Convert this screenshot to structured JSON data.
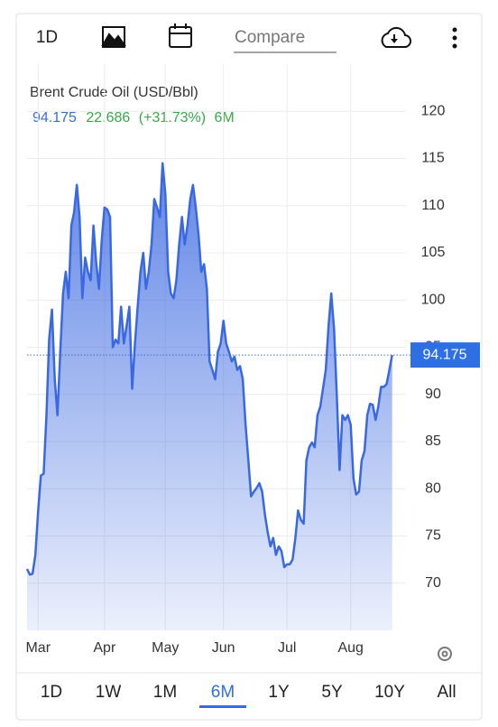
{
  "toolbar": {
    "interval": "1D",
    "compare_placeholder": "Compare"
  },
  "chart_data": {
    "type": "line",
    "title": "Brent Crude Oil (USD/Bbl)",
    "change": 22.686,
    "change_percent": "(+31.73%)",
    "period": "6M",
    "color": "#3a68e0",
    "values": [
      71.5,
      70.9,
      71,
      73,
      77.7,
      81.4,
      81.6,
      87.8,
      95.9,
      99,
      91.6,
      87.8,
      94.5,
      100.7,
      103,
      100.2,
      107.9,
      109.3,
      112.2,
      108.8,
      100.2,
      104.5,
      103,
      102.1,
      107.9,
      104,
      101.2,
      106.4,
      109.8,
      109.6,
      108.8,
      95,
      95.8,
      95.4,
      99.3,
      95.4,
      97.3,
      99.3,
      90.6,
      95.4,
      99.3,
      103,
      105,
      101.2,
      103,
      105.9,
      110.7,
      109.8,
      108.8,
      114.5,
      111.2,
      103,
      100.7,
      100.2,
      102.1,
      105.9,
      108.8,
      105.9,
      107.9,
      110.7,
      112.2,
      109.8,
      106.9,
      103,
      103.8,
      101.2,
      93.5,
      92.6,
      91.6,
      94.5,
      95.4,
      97.8,
      95.4,
      94.5,
      93.5,
      94,
      92.6,
      93,
      91.6,
      86.8,
      83,
      79.2,
      79.7,
      80.1,
      80.6,
      79.7,
      77.3,
      75.4,
      73.9,
      74.8,
      73,
      73.9,
      73.4,
      71.7,
      72,
      72,
      72.5,
      74.8,
      77.7,
      76.7,
      76.3,
      83,
      84.4,
      84.9,
      84.4,
      87.8,
      88.7,
      90.6,
      92.6,
      97.3,
      100.7,
      96.9,
      89.7,
      82,
      87.8,
      87.3,
      87.8,
      86.8,
      81.1,
      79.4,
      79.7,
      83,
      84,
      87.8,
      89,
      88.9,
      87.3,
      88.7,
      90.8,
      90.8,
      91.1,
      92.6,
      94.175
    ],
    "xlim": [
      0,
      137
    ],
    "xticks": [
      {
        "value": 4,
        "label": "Mar"
      },
      {
        "value": 28,
        "label": "Apr"
      },
      {
        "value": 50,
        "label": "May"
      },
      {
        "value": 71,
        "label": "Jun"
      },
      {
        "value": 94,
        "label": "Jul"
      },
      {
        "value": 117,
        "label": "Aug"
      }
    ],
    "ylim": [
      65,
      125
    ],
    "yticks": [
      70,
      75,
      80,
      85,
      90,
      95,
      100,
      105,
      110,
      115,
      120
    ],
    "grid": true
  },
  "range_tabs": [
    "1D",
    "1W",
    "1M",
    "6M",
    "1Y",
    "5Y",
    "10Y",
    "All"
  ],
  "active_range": "6M"
}
